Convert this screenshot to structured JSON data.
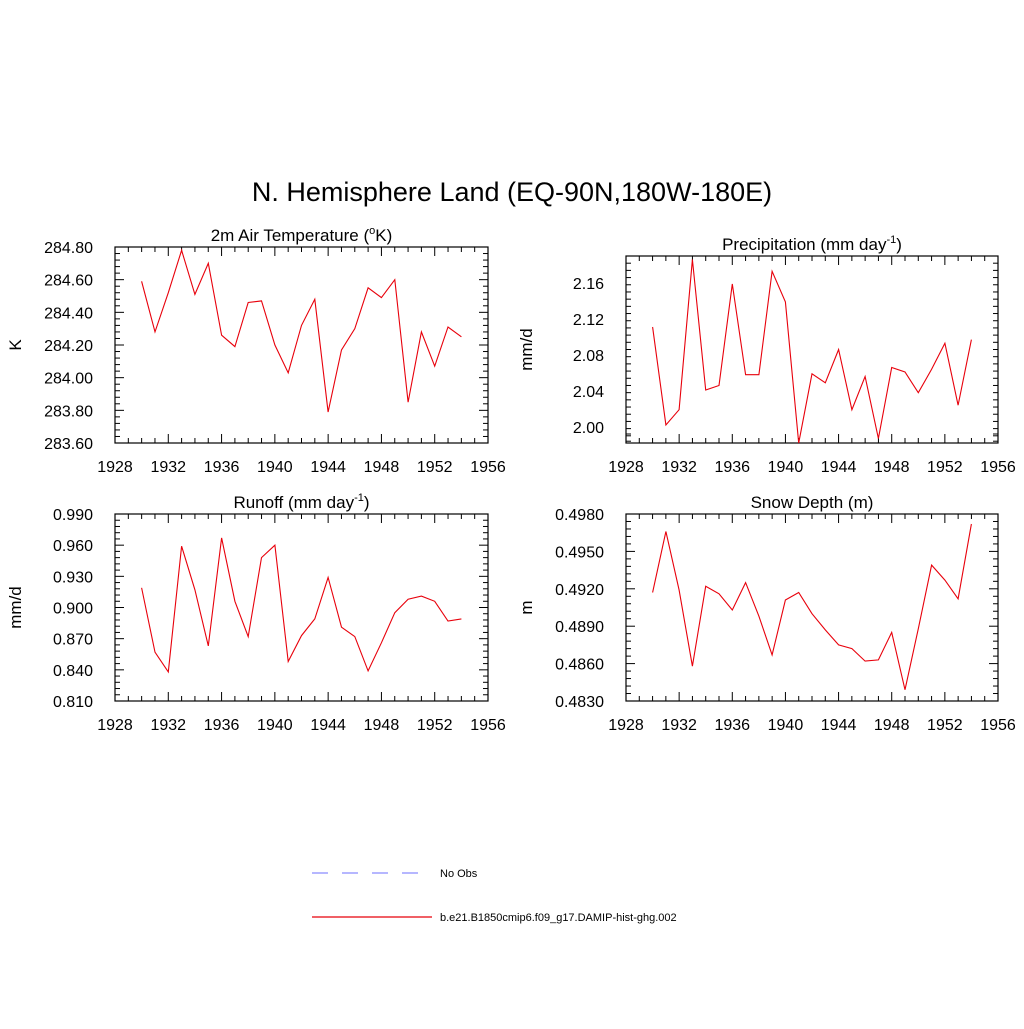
{
  "title": "N. Hemisphere Land (EQ-90N,180W-180E)",
  "colors": {
    "model": "#e8000b",
    "obs": "#8a8cff"
  },
  "legend": {
    "items": [
      {
        "label": "No Obs",
        "style": "dashed",
        "color": "#8a8cff"
      },
      {
        "label": "b.e21.B1850cmip6.f09_g17.DAMIP-hist-ghg.002",
        "style": "solid",
        "color": "#e8000b"
      }
    ]
  },
  "chart_data": [
    {
      "type": "line",
      "title": "2m Air Temperature (",
      "title_sup": "o",
      "title_post": "K)",
      "ylabel": "K",
      "xlim": [
        1928,
        1956
      ],
      "ylim": [
        283.6,
        284.8
      ],
      "xticks": [
        "1928",
        "1932",
        "1936",
        "1940",
        "1944",
        "1948",
        "1952",
        "1956"
      ],
      "yticks": [
        "283.60",
        "283.80",
        "284.00",
        "284.20",
        "284.40",
        "284.60",
        "284.80"
      ],
      "ytick_values": [
        283.6,
        283.8,
        284.0,
        284.2,
        284.4,
        284.6,
        284.8
      ],
      "x": [
        1930,
        1931,
        1932,
        1933,
        1934,
        1935,
        1936,
        1937,
        1938,
        1939,
        1940,
        1941,
        1942,
        1943,
        1944,
        1945,
        1946,
        1947,
        1948,
        1949,
        1950,
        1951,
        1952,
        1953,
        1954
      ],
      "series": [
        {
          "values": [
            284.59,
            284.28,
            284.52,
            284.78,
            284.51,
            284.7,
            284.26,
            284.19,
            284.46,
            284.47,
            284.2,
            284.03,
            284.32,
            284.48,
            283.79,
            284.17,
            284.3,
            284.55,
            284.49,
            284.6,
            283.85,
            284.28,
            284.07,
            284.31,
            284.25
          ]
        }
      ]
    },
    {
      "type": "line",
      "title": "Precipitation (mm day",
      "title_sup": "-1",
      "title_post": ")",
      "ylabel": "mm/d",
      "xlim": [
        1928,
        1956
      ],
      "ylim": [
        1.982,
        2.19
      ],
      "xticks": [
        "1928",
        "1932",
        "1936",
        "1940",
        "1944",
        "1948",
        "1952",
        "1956"
      ],
      "yticks": [
        "2.00",
        "2.04",
        "2.08",
        "2.12",
        "2.16"
      ],
      "ytick_values": [
        2.0,
        2.04,
        2.08,
        2.12,
        2.16
      ],
      "x": [
        1930,
        1931,
        1932,
        1933,
        1934,
        1935,
        1936,
        1937,
        1938,
        1939,
        1940,
        1941,
        1942,
        1943,
        1944,
        1945,
        1946,
        1947,
        1948,
        1949,
        1950,
        1951,
        1952,
        1953,
        1954
      ],
      "series": [
        {
          "values": [
            2.111,
            2.002,
            2.019,
            2.186,
            2.041,
            2.046,
            2.159,
            2.058,
            2.058,
            2.173,
            2.139,
            1.982,
            2.059,
            2.049,
            2.086,
            2.019,
            2.056,
            1.987,
            2.066,
            2.061,
            2.038,
            2.064,
            2.093,
            2.024,
            2.097
          ]
        }
      ]
    },
    {
      "type": "line",
      "title": "Runoff (mm day",
      "title_sup": "-1",
      "title_post": ")",
      "ylabel": "mm/d",
      "xlim": [
        1928,
        1956
      ],
      "ylim": [
        0.81,
        0.99
      ],
      "xticks": [
        "1928",
        "1932",
        "1936",
        "1940",
        "1944",
        "1948",
        "1952",
        "1956"
      ],
      "yticks": [
        "0.810",
        "0.840",
        "0.870",
        "0.900",
        "0.930",
        "0.960",
        "0.990"
      ],
      "ytick_values": [
        0.81,
        0.84,
        0.87,
        0.9,
        0.93,
        0.96,
        0.99
      ],
      "x": [
        1930,
        1931,
        1932,
        1933,
        1934,
        1935,
        1936,
        1937,
        1938,
        1939,
        1940,
        1941,
        1942,
        1943,
        1944,
        1945,
        1946,
        1947,
        1948,
        1949,
        1950,
        1951,
        1952,
        1953,
        1954
      ],
      "series": [
        {
          "values": [
            0.919,
            0.857,
            0.838,
            0.959,
            0.917,
            0.863,
            0.967,
            0.906,
            0.872,
            0.948,
            0.96,
            0.848,
            0.873,
            0.889,
            0.929,
            0.881,
            0.872,
            0.839,
            0.866,
            0.895,
            0.908,
            0.911,
            0.906,
            0.887,
            0.889
          ]
        }
      ]
    },
    {
      "type": "line",
      "title": "Snow Depth (m)",
      "title_sup": "",
      "title_post": "",
      "ylabel": "m",
      "xlim": [
        1928,
        1956
      ],
      "ylim": [
        0.483,
        0.498
      ],
      "xticks": [
        "1928",
        "1932",
        "1936",
        "1940",
        "1944",
        "1948",
        "1952",
        "1956"
      ],
      "yticks": [
        "0.4830",
        "0.4860",
        "0.4890",
        "0.4920",
        "0.4950",
        "0.4980"
      ],
      "ytick_values": [
        0.483,
        0.486,
        0.489,
        0.492,
        0.495,
        0.498
      ],
      "x": [
        1930,
        1931,
        1932,
        1933,
        1934,
        1935,
        1936,
        1937,
        1938,
        1939,
        1940,
        1941,
        1942,
        1943,
        1944,
        1945,
        1946,
        1947,
        1948,
        1949,
        1950,
        1951,
        1952,
        1953,
        1954
      ],
      "series": [
        {
          "values": [
            0.4917,
            0.4966,
            0.4919,
            0.4858,
            0.4922,
            0.4916,
            0.4903,
            0.4925,
            0.4898,
            0.4867,
            0.4911,
            0.4917,
            0.49,
            0.4887,
            0.4875,
            0.4872,
            0.4862,
            0.4863,
            0.4885,
            0.4839,
            0.4888,
            0.4939,
            0.4927,
            0.4912,
            0.4972
          ]
        }
      ]
    }
  ]
}
